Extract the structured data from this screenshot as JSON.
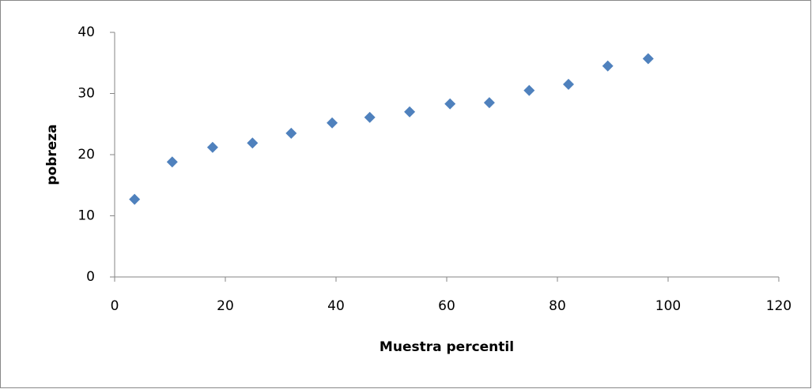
{
  "chart_data": {
    "type": "scatter",
    "x_label": "Muestra percentil",
    "y_label": "pobreza",
    "series": [
      {
        "color": "#4f81bd",
        "x": [
          3.6,
          10.4,
          17.7,
          24.9,
          31.9,
          39.3,
          46.1,
          53.3,
          60.6,
          67.7,
          74.9,
          82.0,
          89.1,
          96.4
        ],
        "values": [
          12.7,
          18.8,
          21.2,
          21.9,
          23.5,
          25.2,
          26.1,
          27.0,
          28.3,
          28.5,
          30.5,
          31.5,
          34.5,
          35.7
        ],
        "errors": [
          0.8,
          0.8,
          0.8,
          0.8,
          0.8,
          0.8,
          0.8,
          0.8,
          0.8,
          0.8,
          0.8,
          0.8,
          0.8,
          0.8
        ]
      }
    ],
    "xlim": [
      0,
      120
    ],
    "xticks": [
      0,
      20,
      40,
      60,
      80,
      100,
      120
    ],
    "ylim": [
      0,
      40
    ],
    "yticks": [
      0,
      10,
      20,
      30,
      40
    ],
    "grid": false
  }
}
